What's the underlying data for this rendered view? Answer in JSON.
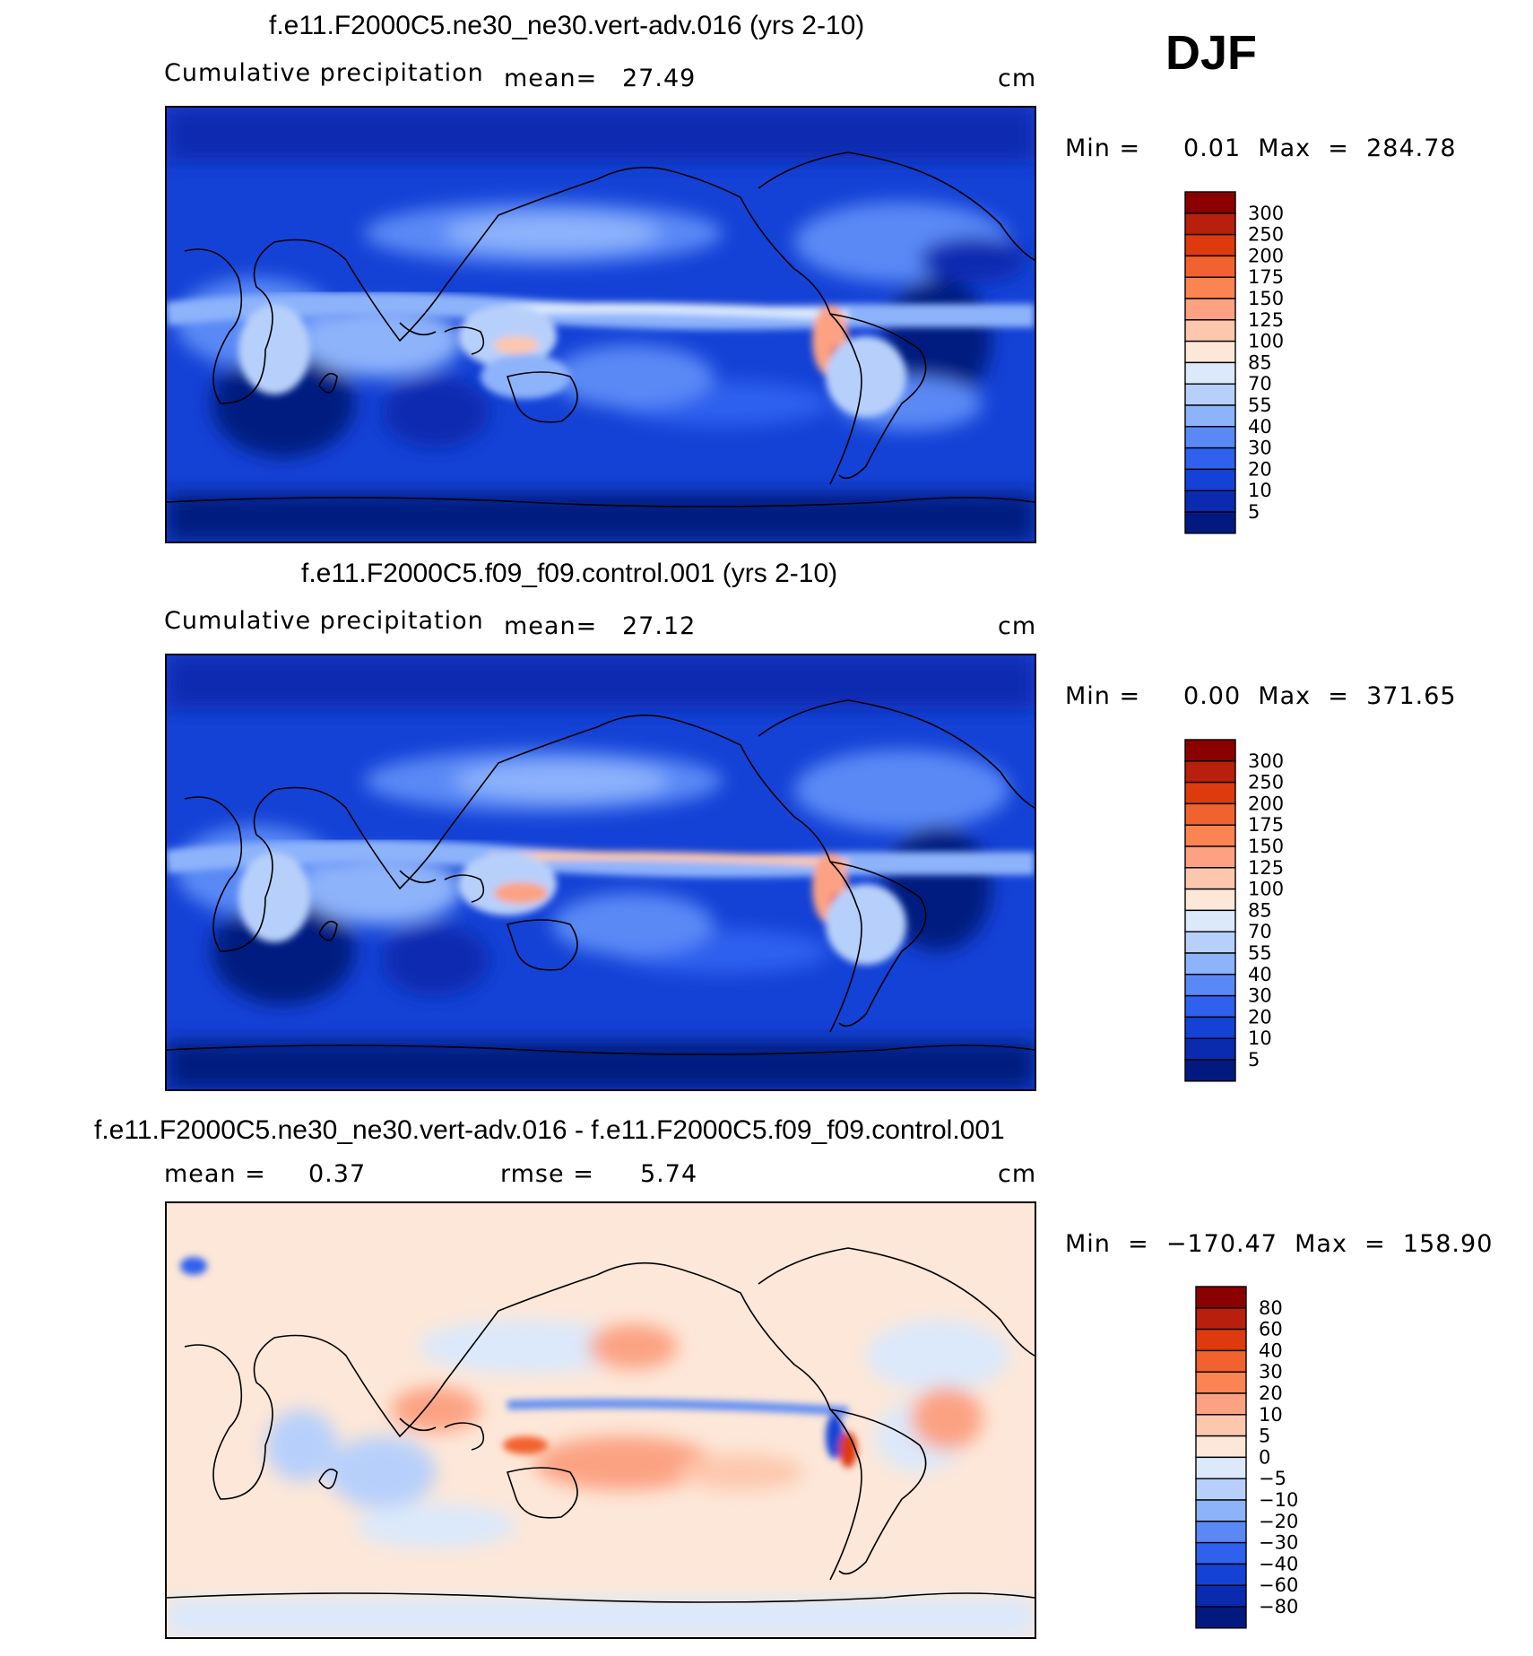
{
  "season": "DJF",
  "panels": [
    {
      "id": "test",
      "title": "f.e11.F2000C5.ne30_ne30.vert-adv.016 (yrs 2-10)",
      "left_text": "Cumulative precipitation",
      "stat_text": "mean=",
      "stat_value": "27.49",
      "units": "cm",
      "minmax": "Min =     0.01  Max  =  284.78"
    },
    {
      "id": "control",
      "title": "f.e11.F2000C5.f09_f09.control.001 (yrs 2-10)",
      "left_text": "Cumulative precipitation",
      "stat_text": "mean=",
      "stat_value": "27.12",
      "units": "cm",
      "minmax": "Min =     0.00  Max  =  371.65"
    },
    {
      "id": "diff",
      "title": "f.e11.F2000C5.ne30_ne30.vert-adv.016 - f.e11.F2000C5.f09_f09.control.001",
      "mean_text": "mean  =",
      "mean_value": "0.37",
      "rmse_text": "rmse  =",
      "rmse_value": "5.74",
      "units": "cm",
      "minmax": "Min  =  −170.47  Max  =  158.90"
    }
  ],
  "colorbars": {
    "precip": {
      "labels": [
        "300",
        "250",
        "200",
        "175",
        "150",
        "125",
        "100",
        "85",
        "70",
        "55",
        "40",
        "30",
        "20",
        "10",
        "5"
      ],
      "colors": [
        "#8b0000",
        "#b81f0c",
        "#dd3a10",
        "#f2622e",
        "#fb8452",
        "#fca283",
        "#fdc7ad",
        "#fde7d8",
        "#dbe9fb",
        "#b7d0fb",
        "#8db3fb",
        "#5a89f6",
        "#2f61ee",
        "#1442d6",
        "#0a2bb0",
        "#021a80"
      ]
    },
    "diff": {
      "labels": [
        "80",
        "60",
        "40",
        "30",
        "20",
        "10",
        "5",
        "0",
        "−5",
        "−10",
        "−20",
        "−30",
        "−40",
        "−60",
        "−80"
      ],
      "colors": [
        "#8b0000",
        "#b81f0c",
        "#dd3a10",
        "#f2622e",
        "#fb8452",
        "#fca283",
        "#fdc7ad",
        "#fde7d8",
        "#dbe9fb",
        "#b7d0fb",
        "#8db3fb",
        "#5a89f6",
        "#2f61ee",
        "#1442d6",
        "#0a2bb0",
        "#021a80"
      ]
    }
  },
  "chart_data": [
    {
      "type": "heatmap",
      "title": "f.e11.F2000C5.ne30_ne30.vert-adv.016 (yrs 2-10)",
      "subtitle": "Cumulative precipitation",
      "units": "cm",
      "mean": 27.49,
      "min": 0.01,
      "max": 284.78,
      "contour_levels": [
        5,
        10,
        20,
        30,
        40,
        55,
        70,
        85,
        100,
        125,
        150,
        175,
        200,
        250,
        300
      ],
      "season": "DJF"
    },
    {
      "type": "heatmap",
      "title": "f.e11.F2000C5.f09_f09.control.001 (yrs 2-10)",
      "subtitle": "Cumulative precipitation",
      "units": "cm",
      "mean": 27.12,
      "min": 0.0,
      "max": 371.65,
      "contour_levels": [
        5,
        10,
        20,
        30,
        40,
        55,
        70,
        85,
        100,
        125,
        150,
        175,
        200,
        250,
        300
      ],
      "season": "DJF"
    },
    {
      "type": "heatmap",
      "title": "f.e11.F2000C5.ne30_ne30.vert-adv.016 - f.e11.F2000C5.f09_f09.control.001",
      "units": "cm",
      "mean": 0.37,
      "rmse": 5.74,
      "min": -170.47,
      "max": 158.9,
      "contour_levels": [
        -80,
        -60,
        -40,
        -30,
        -20,
        -10,
        -5,
        0,
        5,
        10,
        20,
        30,
        40,
        60,
        80
      ],
      "season": "DJF"
    }
  ]
}
